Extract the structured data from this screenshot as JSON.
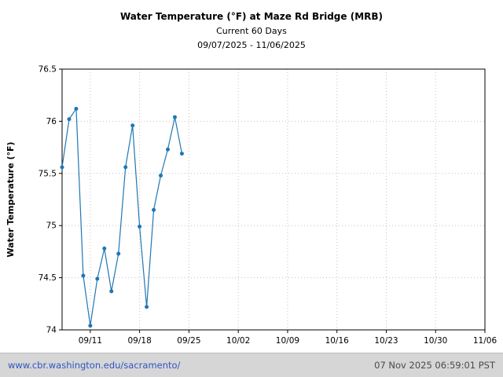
{
  "header": {
    "title": "Water Temperature (°F) at Maze Rd Bridge (MRB)",
    "subtitle": "Current 60 Days",
    "date_range": "09/07/2025 - 11/06/2025"
  },
  "footer": {
    "link": "www.cbr.washington.edu/sacramento/",
    "timestamp": "07 Nov 2025 06:59:01 PST"
  },
  "colors": {
    "line": "#1f77b4",
    "marker": "#1f77b4",
    "grid": "#c3c3c3",
    "axis": "#000000",
    "tick_text": "#000000",
    "footer_bg": "#d6d6d6",
    "link": "#2f55c2",
    "footer_text": "#4a4a4a"
  },
  "chart_data": {
    "type": "line",
    "title": "Water Temperature (°F) at Maze Rd Bridge (MRB)",
    "subtitle": "Current 60 Days",
    "date_range_label": "09/07/2025 - 11/06/2025",
    "xlabel": "",
    "ylabel": "Water Temperature (°F)",
    "ylim": [
      74,
      76.5
    ],
    "yticks": [
      74,
      74.5,
      75,
      75.5,
      76,
      76.5
    ],
    "x_domain_days": [
      0,
      60
    ],
    "x_start_date": "09/07/2025",
    "grid": true,
    "legend_position": "none",
    "xticks": [
      {
        "day": 4,
        "label": "09/11"
      },
      {
        "day": 11,
        "label": "09/18"
      },
      {
        "day": 18,
        "label": "09/25"
      },
      {
        "day": 25,
        "label": "10/02"
      },
      {
        "day": 32,
        "label": "10/09"
      },
      {
        "day": 39,
        "label": "10/16"
      },
      {
        "day": 46,
        "label": "10/23"
      },
      {
        "day": 53,
        "label": "10/30"
      },
      {
        "day": 60,
        "label": "11/06"
      }
    ],
    "series": [
      {
        "name": "Water Temperature (°F)",
        "color": "#1f77b4",
        "points": [
          {
            "date": "09/07",
            "day": 0,
            "value": 75.56
          },
          {
            "date": "09/08",
            "day": 1,
            "value": 76.02
          },
          {
            "date": "09/09",
            "day": 2,
            "value": 76.12
          },
          {
            "date": "09/10",
            "day": 3,
            "value": 74.52
          },
          {
            "date": "09/11",
            "day": 4,
            "value": 74.04
          },
          {
            "date": "09/12",
            "day": 5,
            "value": 74.49
          },
          {
            "date": "09/13",
            "day": 6,
            "value": 74.78
          },
          {
            "date": "09/14",
            "day": 7,
            "value": 74.37
          },
          {
            "date": "09/15",
            "day": 8,
            "value": 74.73
          },
          {
            "date": "09/16",
            "day": 9,
            "value": 75.56
          },
          {
            "date": "09/17",
            "day": 10,
            "value": 75.96
          },
          {
            "date": "09/18",
            "day": 11,
            "value": 74.99
          },
          {
            "date": "09/19",
            "day": 12,
            "value": 74.22
          },
          {
            "date": "09/20",
            "day": 13,
            "value": 75.15
          },
          {
            "date": "09/21",
            "day": 14,
            "value": 75.48
          },
          {
            "date": "09/22",
            "day": 15,
            "value": 75.73
          },
          {
            "date": "09/23",
            "day": 16,
            "value": 76.04
          },
          {
            "date": "09/24",
            "day": 17,
            "value": 75.69
          }
        ]
      }
    ]
  }
}
